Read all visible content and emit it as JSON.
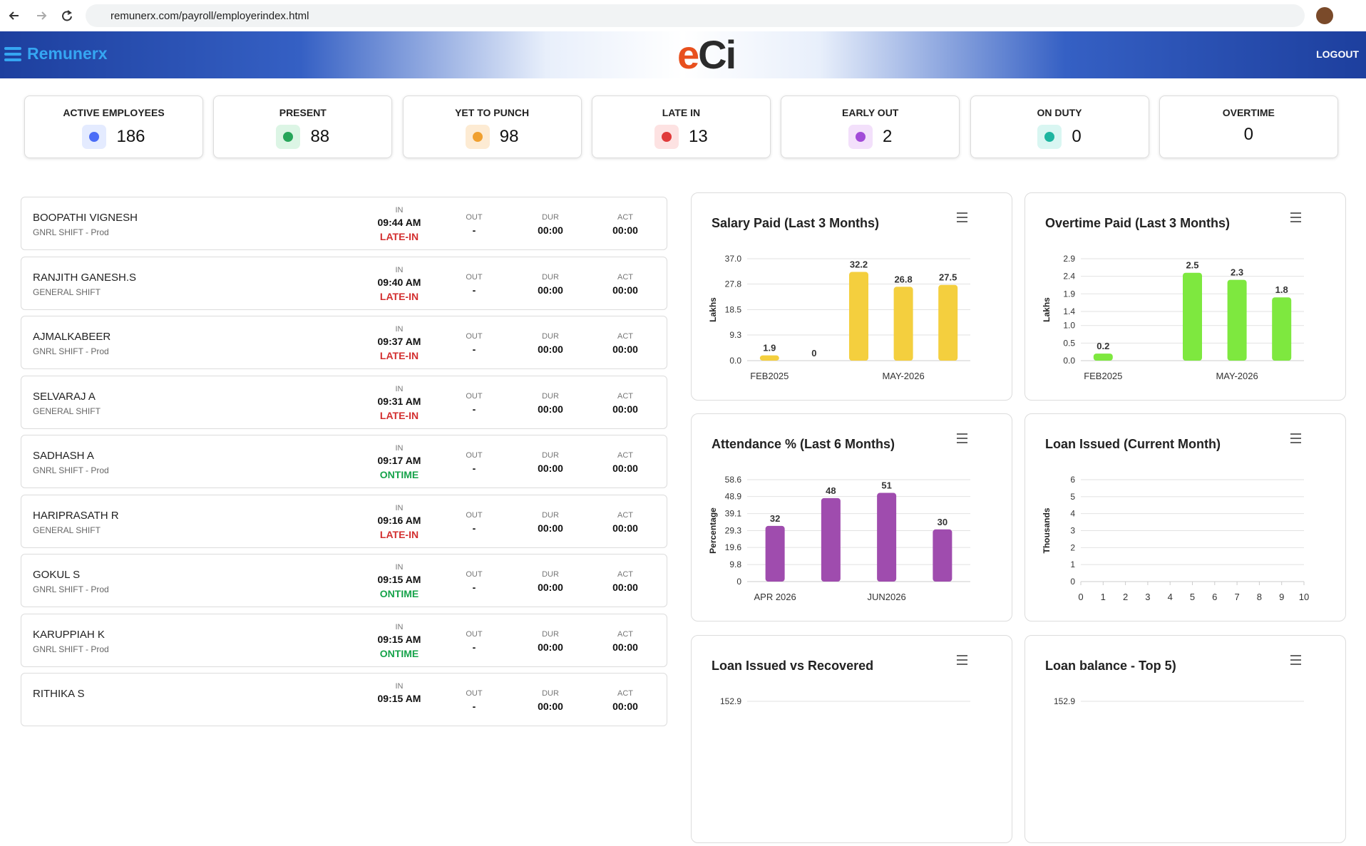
{
  "browser": {
    "url": "remunerx.com/payroll/employerindex.html"
  },
  "header": {
    "brand": "Remunerx",
    "logo": "eCi",
    "logout": "LOGOUT"
  },
  "stats": [
    {
      "label": "ACTIVE EMPLOYEES",
      "value": 186
    },
    {
      "label": "PRESENT",
      "value": 88
    },
    {
      "label": "YET TO PUNCH",
      "value": 98
    },
    {
      "label": "LATE IN",
      "value": 13
    },
    {
      "label": "EARLY OUT",
      "value": 2
    },
    {
      "label": "ON DUTY",
      "value": 0
    },
    {
      "label": "OVERTIME",
      "value": 0
    }
  ],
  "employees": {
    "columns": [
      "IN",
      "OUT",
      "DUR",
      "ACT"
    ],
    "rows": [
      {
        "name": "BOOPATHI VIGNESH",
        "shift": "GNRL SHIFT - Prod",
        "in": "09:44 AM",
        "status": "LATE-IN",
        "status_color": "#d32f2f",
        "out": "-",
        "dur": "00:00",
        "act": "00:00"
      },
      {
        "name": "RANJITH GANESH.S",
        "shift": "GENERAL SHIFT",
        "in": "09:40 AM",
        "status": "LATE-IN",
        "status_color": "#d32f2f",
        "out": "-",
        "dur": "00:00",
        "act": "00:00"
      },
      {
        "name": "AJMALKABEER",
        "shift": "GNRL SHIFT - Prod",
        "in": "09:37 AM",
        "status": "LATE-IN",
        "status_color": "#d32f2f",
        "out": "-",
        "dur": "00:00",
        "act": "00:00"
      },
      {
        "name": "SELVARAJ A",
        "shift": "GENERAL SHIFT",
        "in": "09:31 AM",
        "status": "LATE-IN",
        "status_color": "#d32f2f",
        "out": "-",
        "dur": "00:00",
        "act": "00:00"
      },
      {
        "name": "SADHASH A",
        "shift": "GNRL SHIFT - Prod",
        "in": "09:17 AM",
        "status": "ONTIME",
        "status_color": "#16a34a",
        "out": "-",
        "dur": "00:00",
        "act": "00:00"
      },
      {
        "name": "HARIPRASATH R",
        "shift": "GENERAL SHIFT",
        "in": "09:16 AM",
        "status": "LATE-IN",
        "status_color": "#d32f2f",
        "out": "-",
        "dur": "00:00",
        "act": "00:00"
      },
      {
        "name": "GOKUL S",
        "shift": "GNRL SHIFT - Prod",
        "in": "09:15 AM",
        "status": "ONTIME",
        "status_color": "#16a34a",
        "out": "-",
        "dur": "00:00",
        "act": "00:00"
      },
      {
        "name": "KARUPPIAH K",
        "shift": "GNRL SHIFT - Prod",
        "in": "09:15 AM",
        "status": "ONTIME",
        "status_color": "#16a34a",
        "out": "-",
        "dur": "00:00",
        "act": "00:00"
      },
      {
        "name": "RITHIKA S",
        "in": "09:15 AM",
        "out": "-",
        "dur": "00:00",
        "act": "00:00"
      }
    ]
  },
  "charts": [
    {
      "type": "bar",
      "title": "Salary Paid (Last 3 Months)",
      "y_label": "Lakhs",
      "categories": [
        "FEB2025",
        null,
        null,
        "MAY-2026",
        null
      ],
      "values": [
        1.9,
        0,
        32.2,
        26.8,
        27.5
      ],
      "color": "#f4cf3e",
      "ylim": [
        0,
        37
      ],
      "yticks": [
        {
          "value": 0,
          "label": "0.0"
        },
        9.3,
        18.5,
        27.8,
        {
          "value": 37,
          "label": "37.0"
        }
      ],
      "grid": true
    },
    {
      "type": "bar",
      "title": "Overtime Paid (Last 3 Months)",
      "y_label": "Lakhs",
      "categories": [
        "FEB2025",
        null,
        null,
        "MAY-2026",
        null
      ],
      "values": [
        0.2,
        null,
        2.5,
        2.3,
        1.8
      ],
      "color": "#7ee83f",
      "ylim": [
        0,
        2.9
      ],
      "yticks": [
        {
          "value": 0,
          "label": "0.0"
        },
        0.5,
        {
          "value": 1,
          "label": "1.0"
        },
        1.4,
        1.9,
        2.4,
        2.9
      ],
      "grid": true
    },
    {
      "type": "bar",
      "title": "Attendance % (Last 6 Months)",
      "y_label": "Percentage",
      "categories": [
        "APR 2026",
        null,
        "JUN2026",
        null
      ],
      "values": [
        32,
        48,
        51,
        30
      ],
      "color": "#9f4cae",
      "ylim": [
        0,
        58.6
      ],
      "yticks": [
        0,
        9.8,
        19.6,
        29.3,
        39.1,
        48.9,
        58.6
      ],
      "grid": true
    },
    {
      "type": "line",
      "title": "Loan Issued (Current Month)",
      "y_label": "Thousands",
      "x": [],
      "values": [],
      "xlim": [
        0,
        10
      ],
      "xticks": [
        0,
        1,
        2,
        3,
        4,
        5,
        6,
        7,
        8,
        9,
        10
      ],
      "ylim": [
        0,
        6
      ],
      "yticks": [
        0,
        1,
        2,
        3,
        4,
        5,
        6
      ],
      "grid": true
    },
    {
      "type": "bar",
      "title": "Loan Issued vs Recovered",
      "categories": [],
      "values": [],
      "ylim": [
        0,
        152.9
      ],
      "yticks": [
        152.9
      ],
      "grid": true
    },
    {
      "type": "bar",
      "title": "Loan balance - Top 5)",
      "categories": [],
      "values": [],
      "ylim": [
        0,
        152.9
      ],
      "yticks": [
        152.9
      ],
      "grid": true
    }
  ]
}
